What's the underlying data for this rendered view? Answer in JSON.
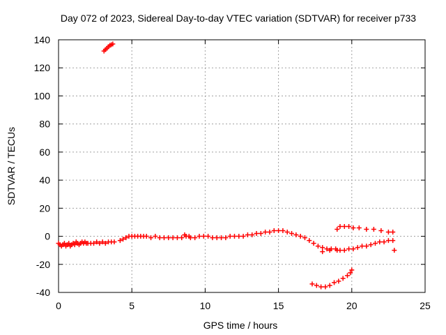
{
  "chart_data": {
    "type": "scatter",
    "title": "Day 072 of 2023, Sidereal Day-to-day VTEC variation (SDTVAR) for receiver p733",
    "xlabel": "GPS time / hours",
    "ylabel": "SDTVAR / TECUs",
    "xlim": [
      0,
      25
    ],
    "ylim": [
      -40,
      140
    ],
    "xticks": [
      0,
      5,
      10,
      15,
      20,
      25
    ],
    "yticks": [
      -40,
      -20,
      0,
      20,
      40,
      60,
      80,
      100,
      120,
      140
    ],
    "xtick_labels": [
      "0",
      "5",
      "10",
      "15",
      "20",
      "25"
    ],
    "ytick_labels": [
      "-40",
      "-20",
      "0",
      "20",
      "40",
      "60",
      "80",
      "100",
      "120",
      "140"
    ],
    "grid": true,
    "marker": "+",
    "color": "#ff0000",
    "series": [
      {
        "name": "outlier-high",
        "points": [
          [
            3.1,
            132
          ],
          [
            3.2,
            133
          ],
          [
            3.3,
            134
          ],
          [
            3.4,
            135
          ],
          [
            3.5,
            136
          ],
          [
            3.6,
            136.5
          ],
          [
            3.7,
            137
          ]
        ]
      },
      {
        "name": "main",
        "points": [
          [
            0.0,
            -5
          ],
          [
            0.1,
            -6
          ],
          [
            0.2,
            -7
          ],
          [
            0.3,
            -6
          ],
          [
            0.4,
            -5
          ],
          [
            0.5,
            -7
          ],
          [
            0.6,
            -6
          ],
          [
            0.7,
            -5
          ],
          [
            0.8,
            -7
          ],
          [
            0.9,
            -6
          ],
          [
            1.0,
            -5
          ],
          [
            1.1,
            -6
          ],
          [
            1.2,
            -4
          ],
          [
            1.3,
            -5
          ],
          [
            1.4,
            -6
          ],
          [
            1.5,
            -5
          ],
          [
            1.6,
            -4
          ],
          [
            1.7,
            -5
          ],
          [
            1.8,
            -4
          ],
          [
            1.9,
            -5
          ],
          [
            2.0,
            -5
          ],
          [
            2.2,
            -5
          ],
          [
            2.4,
            -5
          ],
          [
            2.6,
            -4
          ],
          [
            2.8,
            -5
          ],
          [
            3.0,
            -4
          ],
          [
            3.2,
            -5
          ],
          [
            3.4,
            -4
          ],
          [
            3.6,
            -4
          ],
          [
            3.8,
            -4
          ],
          [
            4.2,
            -3
          ],
          [
            4.4,
            -2
          ],
          [
            4.6,
            -1
          ],
          [
            4.8,
            0
          ],
          [
            5.0,
            0
          ],
          [
            5.2,
            0
          ],
          [
            5.4,
            0
          ],
          [
            5.6,
            0
          ],
          [
            5.8,
            0
          ],
          [
            6.0,
            0
          ],
          [
            6.3,
            -1
          ],
          [
            6.6,
            0
          ],
          [
            6.9,
            -1
          ],
          [
            7.2,
            -1
          ],
          [
            7.5,
            -1
          ],
          [
            7.8,
            -1
          ],
          [
            8.1,
            -1
          ],
          [
            8.4,
            -1
          ],
          [
            8.7,
            0
          ],
          [
            9.0,
            -1
          ],
          [
            9.3,
            -1
          ],
          [
            9.6,
            0
          ],
          [
            9.9,
            0
          ],
          [
            10.2,
            0
          ],
          [
            10.5,
            -1
          ],
          [
            10.8,
            -1
          ],
          [
            11.1,
            -1
          ],
          [
            11.4,
            -1
          ],
          [
            11.7,
            0
          ],
          [
            12.0,
            0
          ],
          [
            12.3,
            0
          ],
          [
            12.6,
            0
          ],
          [
            12.9,
            1
          ],
          [
            13.2,
            1
          ],
          [
            13.5,
            2
          ],
          [
            13.8,
            2
          ],
          [
            14.1,
            3
          ],
          [
            14.4,
            3
          ],
          [
            14.7,
            4
          ],
          [
            15.0,
            4
          ],
          [
            15.3,
            4
          ],
          [
            15.6,
            3
          ],
          [
            15.9,
            2
          ],
          [
            16.2,
            1
          ],
          [
            16.5,
            0
          ],
          [
            16.8,
            -1
          ],
          [
            17.1,
            -3
          ],
          [
            17.4,
            -5
          ],
          [
            17.7,
            -7
          ],
          [
            18.0,
            -8
          ],
          [
            18.3,
            -9
          ],
          [
            18.6,
            -9
          ],
          [
            18.9,
            -9
          ],
          [
            19.2,
            -10
          ],
          [
            19.5,
            -10
          ],
          [
            19.8,
            -9
          ],
          [
            20.1,
            -9
          ],
          [
            20.4,
            -8
          ],
          [
            20.7,
            -7
          ],
          [
            21.0,
            -7
          ],
          [
            21.3,
            -6
          ],
          [
            21.6,
            -5
          ],
          [
            21.9,
            -4
          ],
          [
            22.2,
            -4
          ],
          [
            22.5,
            -3
          ],
          [
            22.8,
            -3
          ]
        ]
      },
      {
        "name": "upper-branch",
        "points": [
          [
            19.0,
            5
          ],
          [
            19.2,
            7
          ],
          [
            19.5,
            7
          ],
          [
            19.8,
            7
          ],
          [
            20.1,
            6
          ],
          [
            20.5,
            6
          ],
          [
            21.0,
            5
          ],
          [
            21.5,
            5
          ],
          [
            22.0,
            4
          ],
          [
            22.5,
            3
          ],
          [
            22.8,
            3
          ]
        ]
      },
      {
        "name": "lower-branch",
        "points": [
          [
            17.3,
            -34
          ],
          [
            17.6,
            -35
          ],
          [
            17.9,
            -36
          ],
          [
            18.2,
            -36
          ],
          [
            18.5,
            -35
          ],
          [
            18.8,
            -33
          ],
          [
            19.1,
            -32
          ],
          [
            19.4,
            -30
          ],
          [
            19.7,
            -28
          ],
          [
            19.9,
            -26
          ],
          [
            20.0,
            -24
          ]
        ]
      },
      {
        "name": "scattered",
        "points": [
          [
            18.0,
            -11
          ],
          [
            18.5,
            -10
          ],
          [
            19.0,
            -10
          ],
          [
            22.9,
            -10
          ],
          [
            8.6,
            1
          ],
          [
            8.9,
            0
          ]
        ]
      }
    ]
  }
}
